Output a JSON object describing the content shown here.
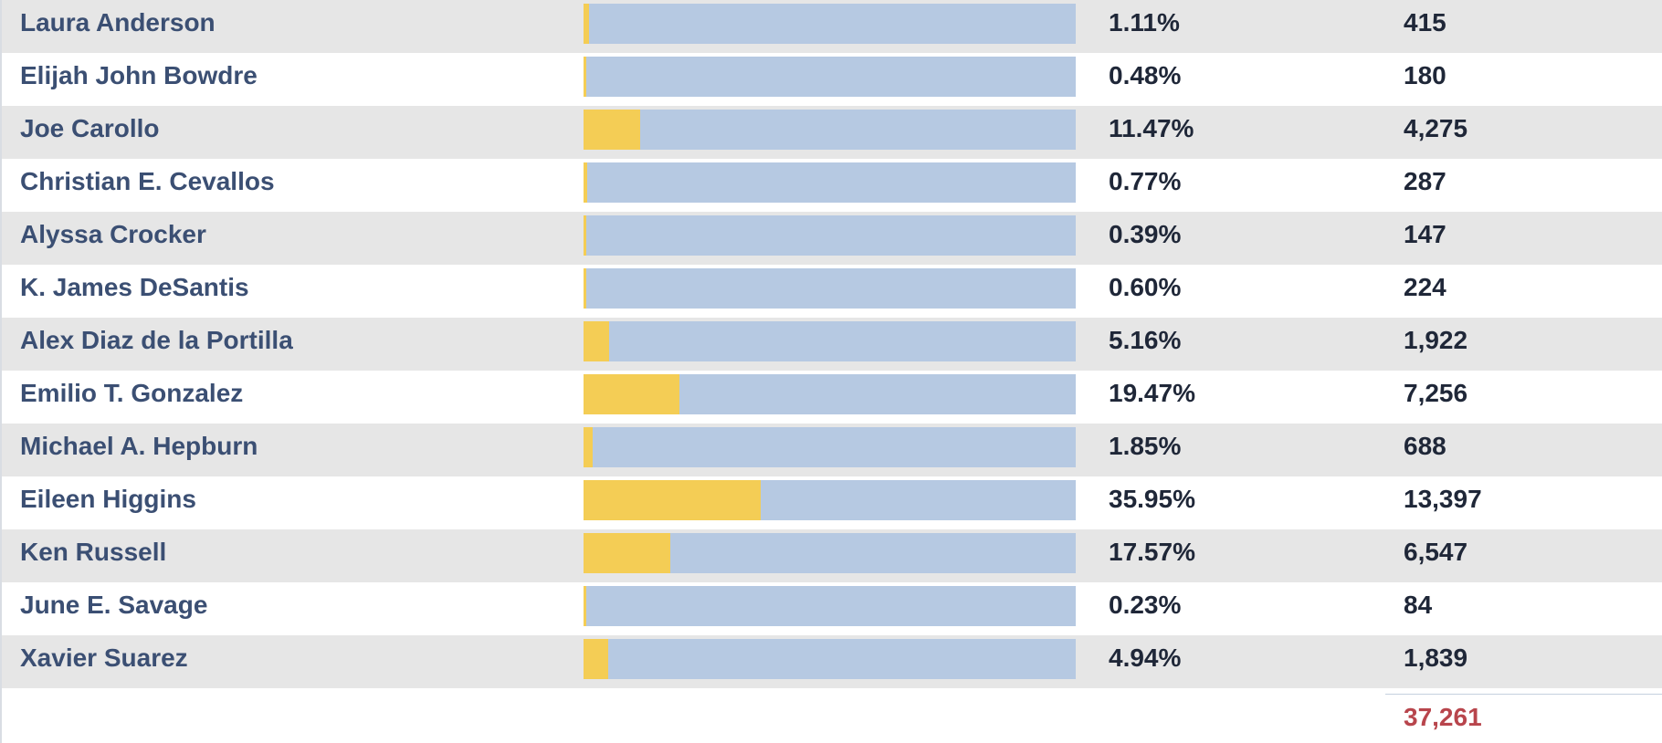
{
  "colors": {
    "name_text": "#3b4f73",
    "value_text": "#1f2738",
    "total_text": "#b8454c",
    "bar_track": "#b6c9e2",
    "bar_fill": "#f4cd55",
    "row_shaded": "#e6e6e6",
    "row_plain": "#ffffff"
  },
  "candidates": [
    {
      "name": "Laura Anderson",
      "percent": "1.11%",
      "share": 1.11,
      "votes": "415"
    },
    {
      "name": "Elijah John Bowdre",
      "percent": "0.48%",
      "share": 0.48,
      "votes": "180"
    },
    {
      "name": "Joe Carollo",
      "percent": "11.47%",
      "share": 11.47,
      "votes": "4,275"
    },
    {
      "name": "Christian E. Cevallos",
      "percent": "0.77%",
      "share": 0.77,
      "votes": "287"
    },
    {
      "name": "Alyssa Crocker",
      "percent": "0.39%",
      "share": 0.39,
      "votes": "147"
    },
    {
      "name": "K. James DeSantis",
      "percent": "0.60%",
      "share": 0.6,
      "votes": "224"
    },
    {
      "name": "Alex Diaz de la Portilla",
      "percent": "5.16%",
      "share": 5.16,
      "votes": "1,922"
    },
    {
      "name": "Emilio T. Gonzalez",
      "percent": "19.47%",
      "share": 19.47,
      "votes": "7,256"
    },
    {
      "name": "Michael A. Hepburn",
      "percent": "1.85%",
      "share": 1.85,
      "votes": "688"
    },
    {
      "name": "Eileen Higgins",
      "percent": "35.95%",
      "share": 35.95,
      "votes": "13,397"
    },
    {
      "name": "Ken Russell",
      "percent": "17.57%",
      "share": 17.57,
      "votes": "6,547"
    },
    {
      "name": "June E. Savage",
      "percent": "0.23%",
      "share": 0.23,
      "votes": "84"
    },
    {
      "name": "Xavier Suarez",
      "percent": "4.94%",
      "share": 4.94,
      "votes": "1,839"
    }
  ],
  "total_votes": "37,261"
}
